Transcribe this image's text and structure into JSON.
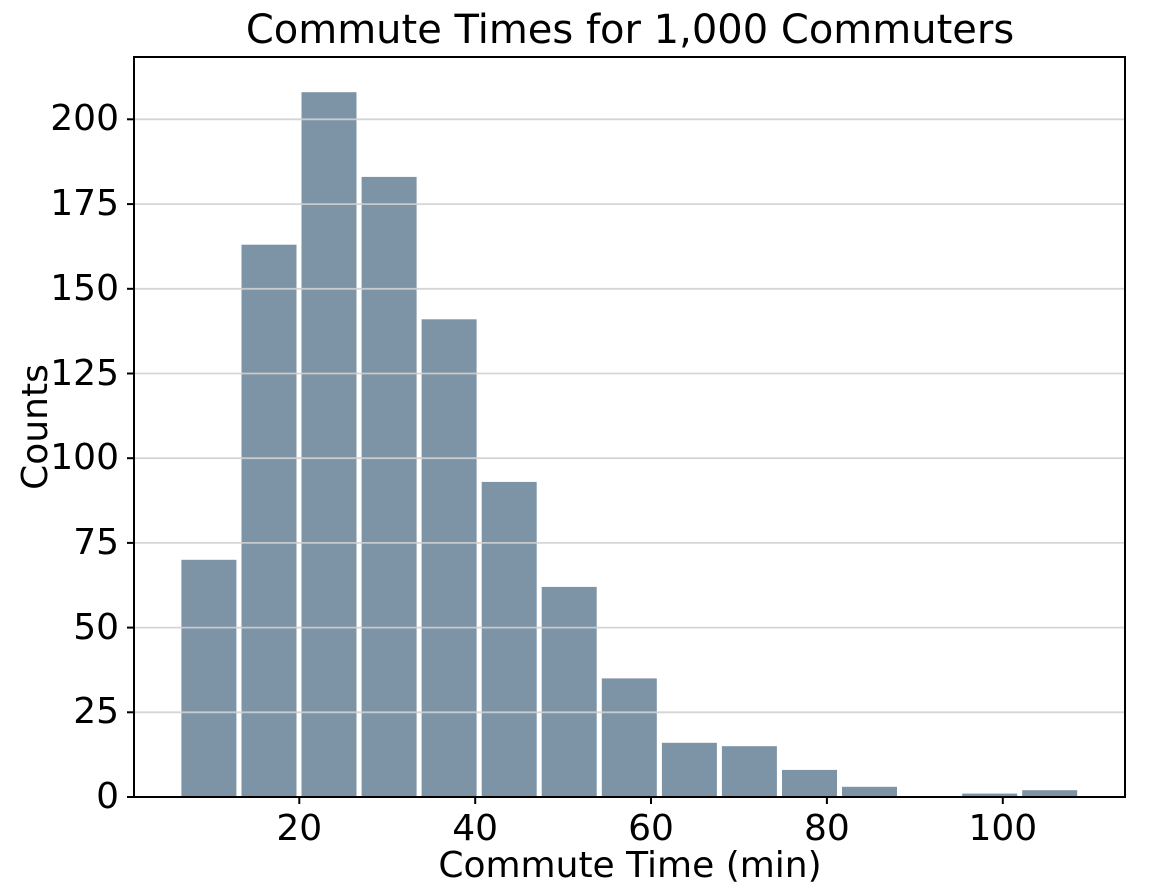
{
  "chart_data": {
    "type": "bar",
    "subtype": "histogram",
    "title": "Commute Times for 1,000 Commuters",
    "xlabel": "Commute Time (min)",
    "ylabel": "Counts",
    "bin_start": 6.3,
    "bin_width": 6.83,
    "counts": [
      70,
      163,
      208,
      183,
      141,
      93,
      62,
      35,
      16,
      15,
      8,
      3,
      0,
      1,
      2
    ],
    "total_count": 1000,
    "x_ticks": [
      20,
      40,
      60,
      80,
      100
    ],
    "y_ticks": [
      0,
      25,
      50,
      75,
      100,
      125,
      150,
      175,
      200
    ],
    "xlim": [
      1.2,
      113.9
    ],
    "ylim": [
      0,
      218.4
    ],
    "bar_rwidth": 0.915,
    "grid": "horizontal-only, drawn above bars",
    "legend": "none",
    "colors": {
      "bar": "#7d93a6",
      "grid": "#d0d0d0",
      "spine": "#000000",
      "text": "#000000",
      "background": "#ffffff"
    }
  }
}
